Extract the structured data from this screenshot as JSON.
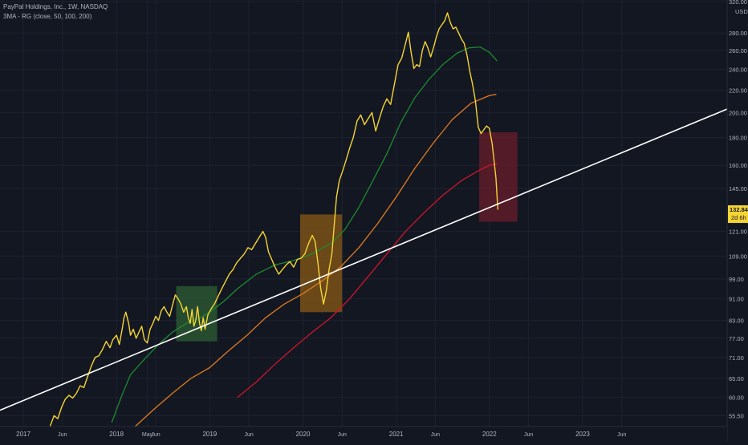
{
  "chart_data": {
    "type": "line",
    "title": "PayPal Holdings, Inc., 1W, NASDAQ",
    "subtitle": "3MA - RG (close, 50, 100, 200)",
    "currency_label": "USD",
    "scale": "log",
    "ylim": [
      53,
      322
    ],
    "xlim": [
      2016.75,
      2024.55
    ],
    "price_ticks": [
      55.5,
      60.0,
      65.0,
      71.0,
      77.0,
      83.0,
      91.0,
      99.0,
      109.0,
      121.0,
      145.0,
      160.0,
      180.0,
      200.0,
      220.0,
      240.0,
      260.0,
      280.0,
      320.0
    ],
    "time_ticks": [
      {
        "label": "2017",
        "x": 2017.0
      },
      {
        "label": "Jun",
        "x": 2017.42
      },
      {
        "label": "2018",
        "x": 2018.0
      },
      {
        "label": "May",
        "x": 2018.33
      },
      {
        "label": "Jun",
        "x": 2018.42
      },
      {
        "label": "2019",
        "x": 2019.0
      },
      {
        "label": "Jun",
        "x": 2019.42
      },
      {
        "label": "2020",
        "x": 2020.0
      },
      {
        "label": "Jun",
        "x": 2020.42
      },
      {
        "label": "2021",
        "x": 2021.0
      },
      {
        "label": "Jun",
        "x": 2021.42
      },
      {
        "label": "2022",
        "x": 2022.0
      },
      {
        "label": "Jun",
        "x": 2022.42
      },
      {
        "label": "2023",
        "x": 2023.0
      },
      {
        "label": "Jun",
        "x": 2023.42
      }
    ],
    "last_price": {
      "value": 132.84,
      "label": "132.84",
      "countdown": "2d 6h"
    },
    "colors": {
      "price": "#f5d435",
      "ma50": "#1e8a2e",
      "ma100": "#e07b1e",
      "ma200": "#d0152b",
      "trendline": "#ffffff",
      "background": "#131722"
    },
    "series": [
      {
        "key": "price",
        "values": [
          [
            2017.29,
            53.2
          ],
          [
            2017.33,
            55.5
          ],
          [
            2017.37,
            54.8
          ],
          [
            2017.41,
            57.5
          ],
          [
            2017.45,
            59.5
          ],
          [
            2017.49,
            60.5
          ],
          [
            2017.53,
            59.8
          ],
          [
            2017.57,
            61.0
          ],
          [
            2017.61,
            63.0
          ],
          [
            2017.65,
            62.5
          ],
          [
            2017.69,
            65.5
          ],
          [
            2017.73,
            68.5
          ],
          [
            2017.77,
            71.0
          ],
          [
            2017.81,
            71.5
          ],
          [
            2017.85,
            73.5
          ],
          [
            2017.89,
            76.0
          ],
          [
            2017.93,
            74.0
          ],
          [
            2017.96,
            76.5
          ],
          [
            2018.0,
            78.0
          ],
          [
            2018.03,
            75.0
          ],
          [
            2018.06,
            80.0
          ],
          [
            2018.08,
            84.0
          ],
          [
            2018.1,
            86.0
          ],
          [
            2018.13,
            82.0
          ],
          [
            2018.15,
            78.0
          ],
          [
            2018.18,
            80.0
          ],
          [
            2018.21,
            77.0
          ],
          [
            2018.24,
            79.0
          ],
          [
            2018.27,
            81.0
          ],
          [
            2018.3,
            76.5
          ],
          [
            2018.33,
            75.5
          ],
          [
            2018.36,
            80.0
          ],
          [
            2018.39,
            82.0
          ],
          [
            2018.42,
            84.5
          ],
          [
            2018.45,
            83.0
          ],
          [
            2018.48,
            86.5
          ],
          [
            2018.51,
            88.0
          ],
          [
            2018.54,
            86.0
          ],
          [
            2018.57,
            84.5
          ],
          [
            2018.6,
            88.5
          ],
          [
            2018.63,
            92.5
          ],
          [
            2018.66,
            91.0
          ],
          [
            2018.69,
            89.0
          ],
          [
            2018.72,
            86.0
          ],
          [
            2018.75,
            88.0
          ],
          [
            2018.77,
            84.0
          ],
          [
            2018.79,
            82.0
          ],
          [
            2018.81,
            87.0
          ],
          [
            2018.83,
            81.0
          ],
          [
            2018.85,
            83.0
          ],
          [
            2018.87,
            88.0
          ],
          [
            2018.89,
            82.0
          ],
          [
            2018.91,
            79.5
          ],
          [
            2018.93,
            84.0
          ],
          [
            2018.95,
            80.0
          ],
          [
            2018.98,
            85.0
          ],
          [
            2019.02,
            87.5
          ],
          [
            2019.05,
            89.0
          ],
          [
            2019.09,
            92.0
          ],
          [
            2019.13,
            95.0
          ],
          [
            2019.17,
            98.0
          ],
          [
            2019.21,
            101.0
          ],
          [
            2019.25,
            103.0
          ],
          [
            2019.29,
            106.0
          ],
          [
            2019.33,
            108.0
          ],
          [
            2019.37,
            110.0
          ],
          [
            2019.41,
            113.0
          ],
          [
            2019.45,
            112.0
          ],
          [
            2019.49,
            115.0
          ],
          [
            2019.53,
            118.0
          ],
          [
            2019.57,
            121.0
          ],
          [
            2019.6,
            118.0
          ],
          [
            2019.63,
            111.0
          ],
          [
            2019.66,
            108.0
          ],
          [
            2019.7,
            104.0
          ],
          [
            2019.74,
            101.0
          ],
          [
            2019.78,
            103.0
          ],
          [
            2019.82,
            105.0
          ],
          [
            2019.86,
            106.5
          ],
          [
            2019.9,
            104.0
          ],
          [
            2019.94,
            107.5
          ],
          [
            2019.98,
            108.0
          ],
          [
            2020.02,
            110.0
          ],
          [
            2020.06,
            115.0
          ],
          [
            2020.1,
            119.0
          ],
          [
            2020.13,
            116.0
          ],
          [
            2020.16,
            106.0
          ],
          [
            2020.19,
            95.0
          ],
          [
            2020.22,
            89.0
          ],
          [
            2020.25,
            94.0
          ],
          [
            2020.28,
            103.0
          ],
          [
            2020.31,
            110.0
          ],
          [
            2020.33,
            121.0
          ],
          [
            2020.36,
            140.0
          ],
          [
            2020.39,
            150.0
          ],
          [
            2020.43,
            157.0
          ],
          [
            2020.46,
            163.0
          ],
          [
            2020.5,
            172.0
          ],
          [
            2020.54,
            180.0
          ],
          [
            2020.58,
            193.0
          ],
          [
            2020.62,
            198.0
          ],
          [
            2020.66,
            190.0
          ],
          [
            2020.7,
            195.0
          ],
          [
            2020.74,
            200.0
          ],
          [
            2020.78,
            185.0
          ],
          [
            2020.82,
            195.0
          ],
          [
            2020.86,
            205.0
          ],
          [
            2020.9,
            212.0
          ],
          [
            2020.94,
            207.0
          ],
          [
            2020.98,
            225.0
          ],
          [
            2021.02,
            245.0
          ],
          [
            2021.06,
            252.0
          ],
          [
            2021.1,
            268.0
          ],
          [
            2021.13,
            281.0
          ],
          [
            2021.16,
            258.0
          ],
          [
            2021.19,
            241.0
          ],
          [
            2021.22,
            245.0
          ],
          [
            2021.25,
            243.0
          ],
          [
            2021.28,
            260.0
          ],
          [
            2021.31,
            270.0
          ],
          [
            2021.34,
            263.0
          ],
          [
            2021.37,
            253.0
          ],
          [
            2021.4,
            263.0
          ],
          [
            2021.43,
            275.0
          ],
          [
            2021.46,
            285.0
          ],
          [
            2021.49,
            290.0
          ],
          [
            2021.52,
            295.0
          ],
          [
            2021.55,
            305.0
          ],
          [
            2021.58,
            293.0
          ],
          [
            2021.61,
            285.0
          ],
          [
            2021.64,
            287.0
          ],
          [
            2021.67,
            280.0
          ],
          [
            2021.7,
            273.0
          ],
          [
            2021.73,
            268.0
          ],
          [
            2021.76,
            255.0
          ],
          [
            2021.79,
            238.0
          ],
          [
            2021.82,
            225.0
          ],
          [
            2021.85,
            210.0
          ],
          [
            2021.88,
            188.0
          ],
          [
            2021.91,
            183.0
          ],
          [
            2021.94,
            186.0
          ],
          [
            2021.97,
            189.0
          ],
          [
            2022.0,
            187.0
          ],
          [
            2022.03,
            175.0
          ],
          [
            2022.05,
            163.0
          ],
          [
            2022.07,
            152.0
          ],
          [
            2022.09,
            132.84
          ]
        ]
      },
      {
        "key": "ma50",
        "values": [
          [
            2017.95,
            54.0
          ],
          [
            2018.05,
            60.0
          ],
          [
            2018.15,
            66.0
          ],
          [
            2018.3,
            70.5
          ],
          [
            2018.45,
            75.0
          ],
          [
            2018.6,
            79.0
          ],
          [
            2018.75,
            82.0
          ],
          [
            2018.9,
            84.0
          ],
          [
            2019.0,
            86.0
          ],
          [
            2019.15,
            90.0
          ],
          [
            2019.3,
            95.0
          ],
          [
            2019.5,
            101.0
          ],
          [
            2019.7,
            105.0
          ],
          [
            2019.9,
            107.0
          ],
          [
            2020.1,
            110.0
          ],
          [
            2020.3,
            115.0
          ],
          [
            2020.45,
            122.0
          ],
          [
            2020.6,
            134.0
          ],
          [
            2020.75,
            150.0
          ],
          [
            2020.9,
            168.0
          ],
          [
            2021.05,
            192.0
          ],
          [
            2021.2,
            213.0
          ],
          [
            2021.35,
            230.0
          ],
          [
            2021.5,
            245.0
          ],
          [
            2021.65,
            257.0
          ],
          [
            2021.78,
            263.0
          ],
          [
            2021.9,
            264.0
          ],
          [
            2022.0,
            258.0
          ],
          [
            2022.08,
            249.0
          ]
        ]
      },
      {
        "key": "ma100",
        "values": [
          [
            2018.2,
            53.0
          ],
          [
            2018.4,
            57.0
          ],
          [
            2018.6,
            61.0
          ],
          [
            2018.8,
            65.0
          ],
          [
            2019.0,
            68.0
          ],
          [
            2019.2,
            73.0
          ],
          [
            2019.4,
            78.0
          ],
          [
            2019.6,
            84.0
          ],
          [
            2019.8,
            89.0
          ],
          [
            2020.0,
            93.0
          ],
          [
            2020.2,
            98.0
          ],
          [
            2020.4,
            104.0
          ],
          [
            2020.6,
            113.0
          ],
          [
            2020.8,
            125.0
          ],
          [
            2021.0,
            140.0
          ],
          [
            2021.2,
            158.0
          ],
          [
            2021.4,
            176.0
          ],
          [
            2021.6,
            194.0
          ],
          [
            2021.8,
            208.0
          ],
          [
            2022.0,
            215.0
          ],
          [
            2022.07,
            216.0
          ]
        ]
      },
      {
        "key": "ma200",
        "values": [
          [
            2019.3,
            60.0
          ],
          [
            2019.5,
            64.0
          ],
          [
            2019.7,
            69.0
          ],
          [
            2019.9,
            74.0
          ],
          [
            2020.1,
            79.0
          ],
          [
            2020.3,
            84.0
          ],
          [
            2020.5,
            91.0
          ],
          [
            2020.7,
            100.0
          ],
          [
            2020.9,
            110.0
          ],
          [
            2021.1,
            121.0
          ],
          [
            2021.3,
            131.0
          ],
          [
            2021.5,
            141.0
          ],
          [
            2021.7,
            150.0
          ],
          [
            2021.9,
            157.0
          ],
          [
            2022.0,
            160.0
          ],
          [
            2022.08,
            161.0
          ]
        ]
      }
    ],
    "trendline": {
      "from": [
        2016.75,
        56.8
      ],
      "to": [
        2024.55,
        203.0
      ]
    },
    "boxes": [
      {
        "color": "#2e5e33",
        "x0": 2018.64,
        "x1": 2019.08,
        "y0": 76.0,
        "y1": 96.0
      },
      {
        "color": "#8a5a16",
        "x0": 2019.97,
        "x1": 2020.42,
        "y0": 86.0,
        "y1": 130.0
      },
      {
        "color": "#6a1c2a",
        "x0": 2021.89,
        "x1": 2022.3,
        "y0": 126.0,
        "y1": 184.0
      }
    ]
  }
}
